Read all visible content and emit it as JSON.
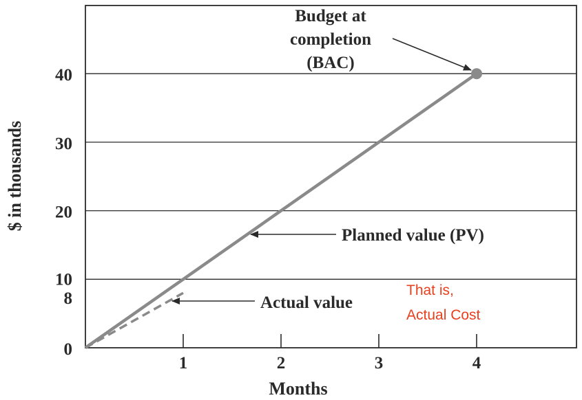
{
  "chart_data": {
    "type": "line",
    "xlabel": "Months",
    "ylabel": "$ in thousands",
    "xlim": [
      0,
      5
    ],
    "ylim": [
      0,
      50
    ],
    "x_ticks": [
      1,
      2,
      3,
      4
    ],
    "x_tick_labels": [
      "1",
      "2",
      "3",
      "4"
    ],
    "y_ticks": [
      0,
      8,
      10,
      20,
      30,
      40
    ],
    "y_tick_labels": [
      "0",
      "8",
      "10",
      "20",
      "30",
      "40"
    ],
    "y_gridlines": [
      10,
      20,
      30,
      40
    ],
    "grid": "horizontal",
    "series": [
      {
        "name": "Planned value (PV)",
        "style": "solid",
        "color": "#8a8a8a",
        "x": [
          0,
          4
        ],
        "y": [
          0,
          40
        ]
      },
      {
        "name": "Actual value",
        "style": "dashed",
        "color": "#8a8a8a",
        "x": [
          0,
          1
        ],
        "y": [
          0,
          8
        ]
      }
    ],
    "points": [
      {
        "x": 4,
        "y": 40,
        "color": "#8a8a8a"
      }
    ],
    "annotations": {
      "bac": [
        "Budget at",
        "completion",
        "(BAC)"
      ],
      "pv": "Planned value (PV)",
      "actual": "Actual value",
      "note": [
        "That is,",
        "Actual Cost"
      ]
    },
    "colors": {
      "line": "#8a8a8a",
      "axis": "#2a2a2a",
      "note": "#e8401e"
    }
  }
}
